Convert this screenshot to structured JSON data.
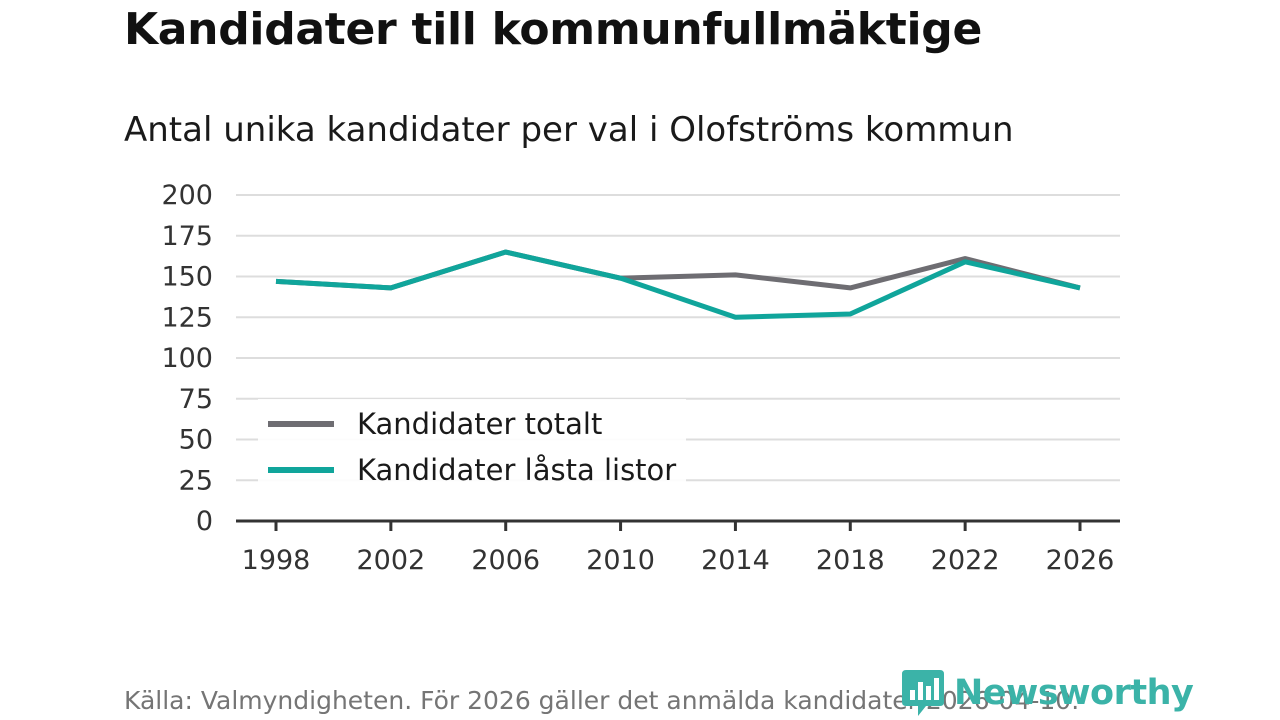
{
  "header": {
    "title": "Kandidater till kommunfullmäktige",
    "subtitle": "Antal unika kandidater per val i Olofströms kommun"
  },
  "footer": {
    "source": "Källa: Valmyndigheten. För 2026 gäller det anmälda kandidater 2026-04-10.",
    "brand": "Newsworthy"
  },
  "colors": {
    "series_total": "#6e6d72",
    "series_locked": "#10a59b",
    "grid": "#dddddd",
    "brand": "#3bb3a8"
  },
  "chart_data": {
    "type": "line",
    "title": "Antal unika kandidater per val i Olofströms kommun",
    "xlabel": "",
    "ylabel": "",
    "x": [
      "1998",
      "2002",
      "2006",
      "2010",
      "2014",
      "2018",
      "2022",
      "2026"
    ],
    "ylim": [
      0,
      200
    ],
    "yticks": [
      0,
      25,
      50,
      75,
      100,
      125,
      150,
      175,
      200
    ],
    "grid": true,
    "legend": "center-left",
    "series": [
      {
        "name": "Kandidater totalt",
        "values": [
          147,
          143,
          165,
          149,
          151,
          143,
          161,
          143
        ]
      },
      {
        "name": "Kandidater låsta listor",
        "values": [
          147,
          143,
          165,
          149,
          125,
          127,
          159,
          143
        ]
      }
    ]
  }
}
